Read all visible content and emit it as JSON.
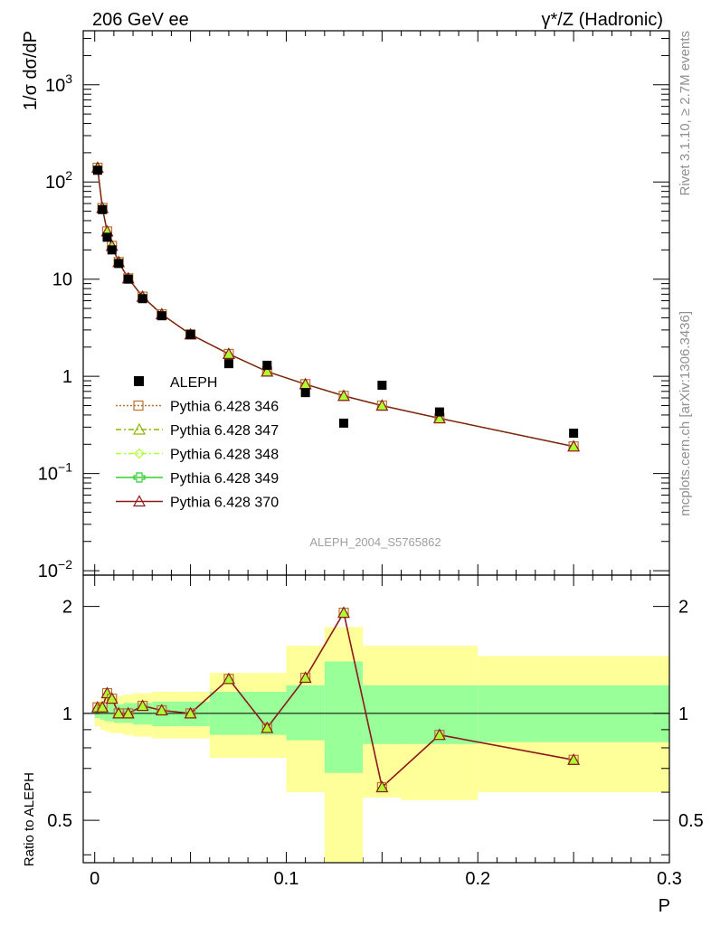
{
  "header": {
    "left": "206 GeV ee",
    "right": "γ*/Z (Hadronic)"
  },
  "side_labels": {
    "top": "Rivet 3.1.10, ≥ 2.7M events",
    "bottom": "mcplots.cern.ch [arXiv:1306.3436]"
  },
  "analysis_label": "ALEPH_2004_S5765862",
  "colors": {
    "data": "#000000",
    "p346": "#b87333",
    "p347": "#8db600",
    "p348": "#adff2f",
    "p349": "#32cd32",
    "p370": "#8b1a1a",
    "band_outer": "#ffff99",
    "band_inner": "#99ff99"
  },
  "chart_data": [
    {
      "type": "scatter",
      "ylabel": "1/σ dσ/dP",
      "yscale": "log",
      "ylim": [
        0.009,
        3600
      ],
      "xlim": [
        -0.006,
        0.3
      ],
      "ytick_labels": [
        "10^-2",
        "10^-1",
        "1",
        "10",
        "10^2",
        "10^3"
      ],
      "legend": [
        "ALEPH",
        "Pythia 6.428 346",
        "Pythia 6.428 347",
        "Pythia 6.428 348",
        "Pythia 6.428 349",
        "Pythia 6.428 370"
      ],
      "legend_position": "bottom-left",
      "data": {
        "name": "ALEPH",
        "x": [
          0.0015,
          0.004,
          0.0065,
          0.009,
          0.0125,
          0.0175,
          0.025,
          0.035,
          0.05,
          0.07,
          0.09,
          0.11,
          0.13,
          0.15,
          0.18,
          0.25
        ],
        "y": [
          132,
          52,
          27,
          20,
          14.5,
          10,
          6.3,
          4.2,
          2.7,
          1.35,
          1.3,
          0.68,
          0.33,
          0.81,
          0.43,
          0.26
        ]
      },
      "mc_x": [
        0.0015,
        0.004,
        0.0065,
        0.009,
        0.0125,
        0.0175,
        0.025,
        0.035,
        0.05,
        0.07,
        0.09,
        0.11,
        0.13,
        0.15,
        0.18,
        0.25
      ],
      "mc_y": [
        140,
        54,
        31,
        22,
        15,
        10.2,
        6.6,
        4.35,
        2.7,
        1.7,
        1.12,
        0.83,
        0.63,
        0.5,
        0.37,
        0.19
      ]
    },
    {
      "type": "line",
      "ylabel": "Ratio to ALEPH",
      "yscale": "log",
      "ylim": [
        0.38,
        2.45
      ],
      "xlim": [
        -0.006,
        0.3
      ],
      "xlabel": "P",
      "ytick_labels": [
        "0.5",
        "1",
        "2"
      ],
      "xtick_labels": [
        "0",
        "0.1",
        "0.2",
        "0.3"
      ],
      "ratio": [
        1.04,
        1.04,
        1.14,
        1.1,
        1.0,
        1.0,
        1.05,
        1.02,
        1.0,
        1.25,
        0.91,
        1.26,
        1.92,
        0.62,
        0.87,
        0.74
      ],
      "bins": [
        0,
        0.003,
        0.005,
        0.008,
        0.01,
        0.015,
        0.02,
        0.03,
        0.04,
        0.06,
        0.08,
        0.1,
        0.12,
        0.14,
        0.16,
        0.2,
        0.3
      ],
      "band_inner": [
        [
          0.97,
          1.03
        ],
        [
          0.96,
          1.05
        ],
        [
          0.95,
          1.06
        ],
        [
          0.95,
          1.06
        ],
        [
          0.94,
          1.06
        ],
        [
          0.94,
          1.07
        ],
        [
          0.93,
          1.07
        ],
        [
          0.92,
          1.08
        ],
        [
          0.92,
          1.08
        ],
        [
          0.87,
          1.15
        ],
        [
          0.87,
          1.15
        ],
        [
          0.84,
          1.2
        ],
        [
          0.68,
          1.4
        ],
        [
          0.82,
          1.2
        ],
        [
          0.82,
          1.2
        ],
        [
          0.83,
          1.2
        ]
      ],
      "band_outer": [
        [
          0.92,
          1.08
        ],
        [
          0.9,
          1.1
        ],
        [
          0.89,
          1.11
        ],
        [
          0.88,
          1.12
        ],
        [
          0.88,
          1.12
        ],
        [
          0.87,
          1.13
        ],
        [
          0.86,
          1.14
        ],
        [
          0.85,
          1.15
        ],
        [
          0.85,
          1.15
        ],
        [
          0.75,
          1.3
        ],
        [
          0.75,
          1.3
        ],
        [
          0.6,
          1.55
        ],
        [
          0.37,
          1.75
        ],
        [
          0.58,
          1.55
        ],
        [
          0.57,
          1.55
        ],
        [
          0.6,
          1.45
        ]
      ]
    }
  ]
}
